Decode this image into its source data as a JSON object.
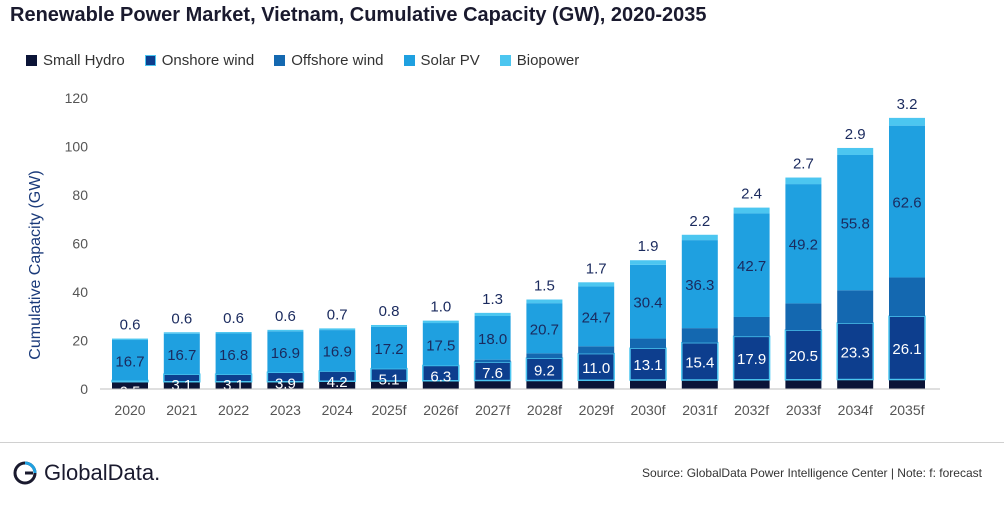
{
  "title": "Renewable Power Market, Vietnam, Cumulative Capacity (GW), 2020-2035",
  "legend": [
    {
      "name": "Small Hydro",
      "color": "#0b1437"
    },
    {
      "name": "Onshore wind",
      "color": "#0d3e8e"
    },
    {
      "name": "Offshore wind",
      "color": "#1468b0"
    },
    {
      "name": "Solar PV",
      "color": "#1fa0e0"
    },
    {
      "name": "Biopower",
      "color": "#4cc6f0"
    }
  ],
  "chart_data": {
    "type": "bar",
    "stacked": true,
    "title": "Renewable Power Market, Vietnam, Cumulative Capacity (GW), 2020-2035",
    "xlabel": "",
    "ylabel": "Cumulative Capacity (GW)",
    "ylim": [
      0,
      120
    ],
    "yticks": [
      "0",
      "20",
      "40",
      "60",
      "80",
      "100",
      "120"
    ],
    "categories": [
      "2020",
      "2021",
      "2022",
      "2023",
      "2024",
      "2025f",
      "2026f",
      "2027f",
      "2028f",
      "2029f",
      "2030f",
      "2031f",
      "2032f",
      "2033f",
      "2034f",
      "2035f"
    ],
    "series": [
      {
        "name": "Small Hydro",
        "values": [
          3.0,
          3.0,
          3.0,
          3.0,
          3.2,
          3.3,
          3.4,
          3.5,
          3.5,
          3.6,
          3.7,
          3.7,
          3.8,
          3.8,
          3.9,
          3.9
        ]
      },
      {
        "name": "Onshore wind",
        "values": [
          0.5,
          3.1,
          3.1,
          3.9,
          4.2,
          5.1,
          6.3,
          7.6,
          9.2,
          11.0,
          13.1,
          15.4,
          17.9,
          20.5,
          23.3,
          26.1
        ]
      },
      {
        "name": "Offshore wind",
        "values": [
          0,
          0,
          0,
          0,
          0,
          0,
          0,
          1,
          2,
          3,
          4,
          6,
          8,
          11,
          13.5,
          16
        ]
      },
      {
        "name": "Solar PV",
        "values": [
          16.7,
          16.7,
          16.8,
          16.9,
          16.9,
          17.2,
          17.5,
          18.0,
          20.7,
          24.7,
          30.4,
          36.3,
          42.7,
          49.2,
          55.8,
          62.6
        ]
      },
      {
        "name": "Biopower",
        "values": [
          0.6,
          0.6,
          0.6,
          0.6,
          0.7,
          0.8,
          1.0,
          1.3,
          1.5,
          1.7,
          1.9,
          2.2,
          2.4,
          2.7,
          2.9,
          3.2
        ]
      }
    ],
    "data_labels": {
      "onshore": [
        "0.5",
        "3.1",
        "3.1",
        "3.9",
        "4.2",
        "5.1",
        "6.3",
        "7.6",
        "9.2",
        "11.0",
        "13.1",
        "15.4",
        "17.9",
        "20.5",
        "23.3",
        "26.1"
      ],
      "solar": [
        "16.7",
        "16.7",
        "16.8",
        "16.9",
        "16.9",
        "17.2",
        "17.5",
        "18.0",
        "20.7",
        "24.7",
        "30.4",
        "36.3",
        "42.7",
        "49.2",
        "55.8",
        "62.6"
      ],
      "bio": [
        "0.6",
        "0.6",
        "0.6",
        "0.6",
        "0.7",
        "0.8",
        "1.0",
        "1.3",
        "1.5",
        "1.7",
        "1.9",
        "2.2",
        "2.4",
        "2.7",
        "2.9",
        "3.2"
      ]
    },
    "grid": false,
    "legend_position": "top-left"
  },
  "footer": {
    "logo_text": "GlobalData.",
    "source": "Source: GlobalData Power Intelligence Center | Note: f: forecast"
  }
}
